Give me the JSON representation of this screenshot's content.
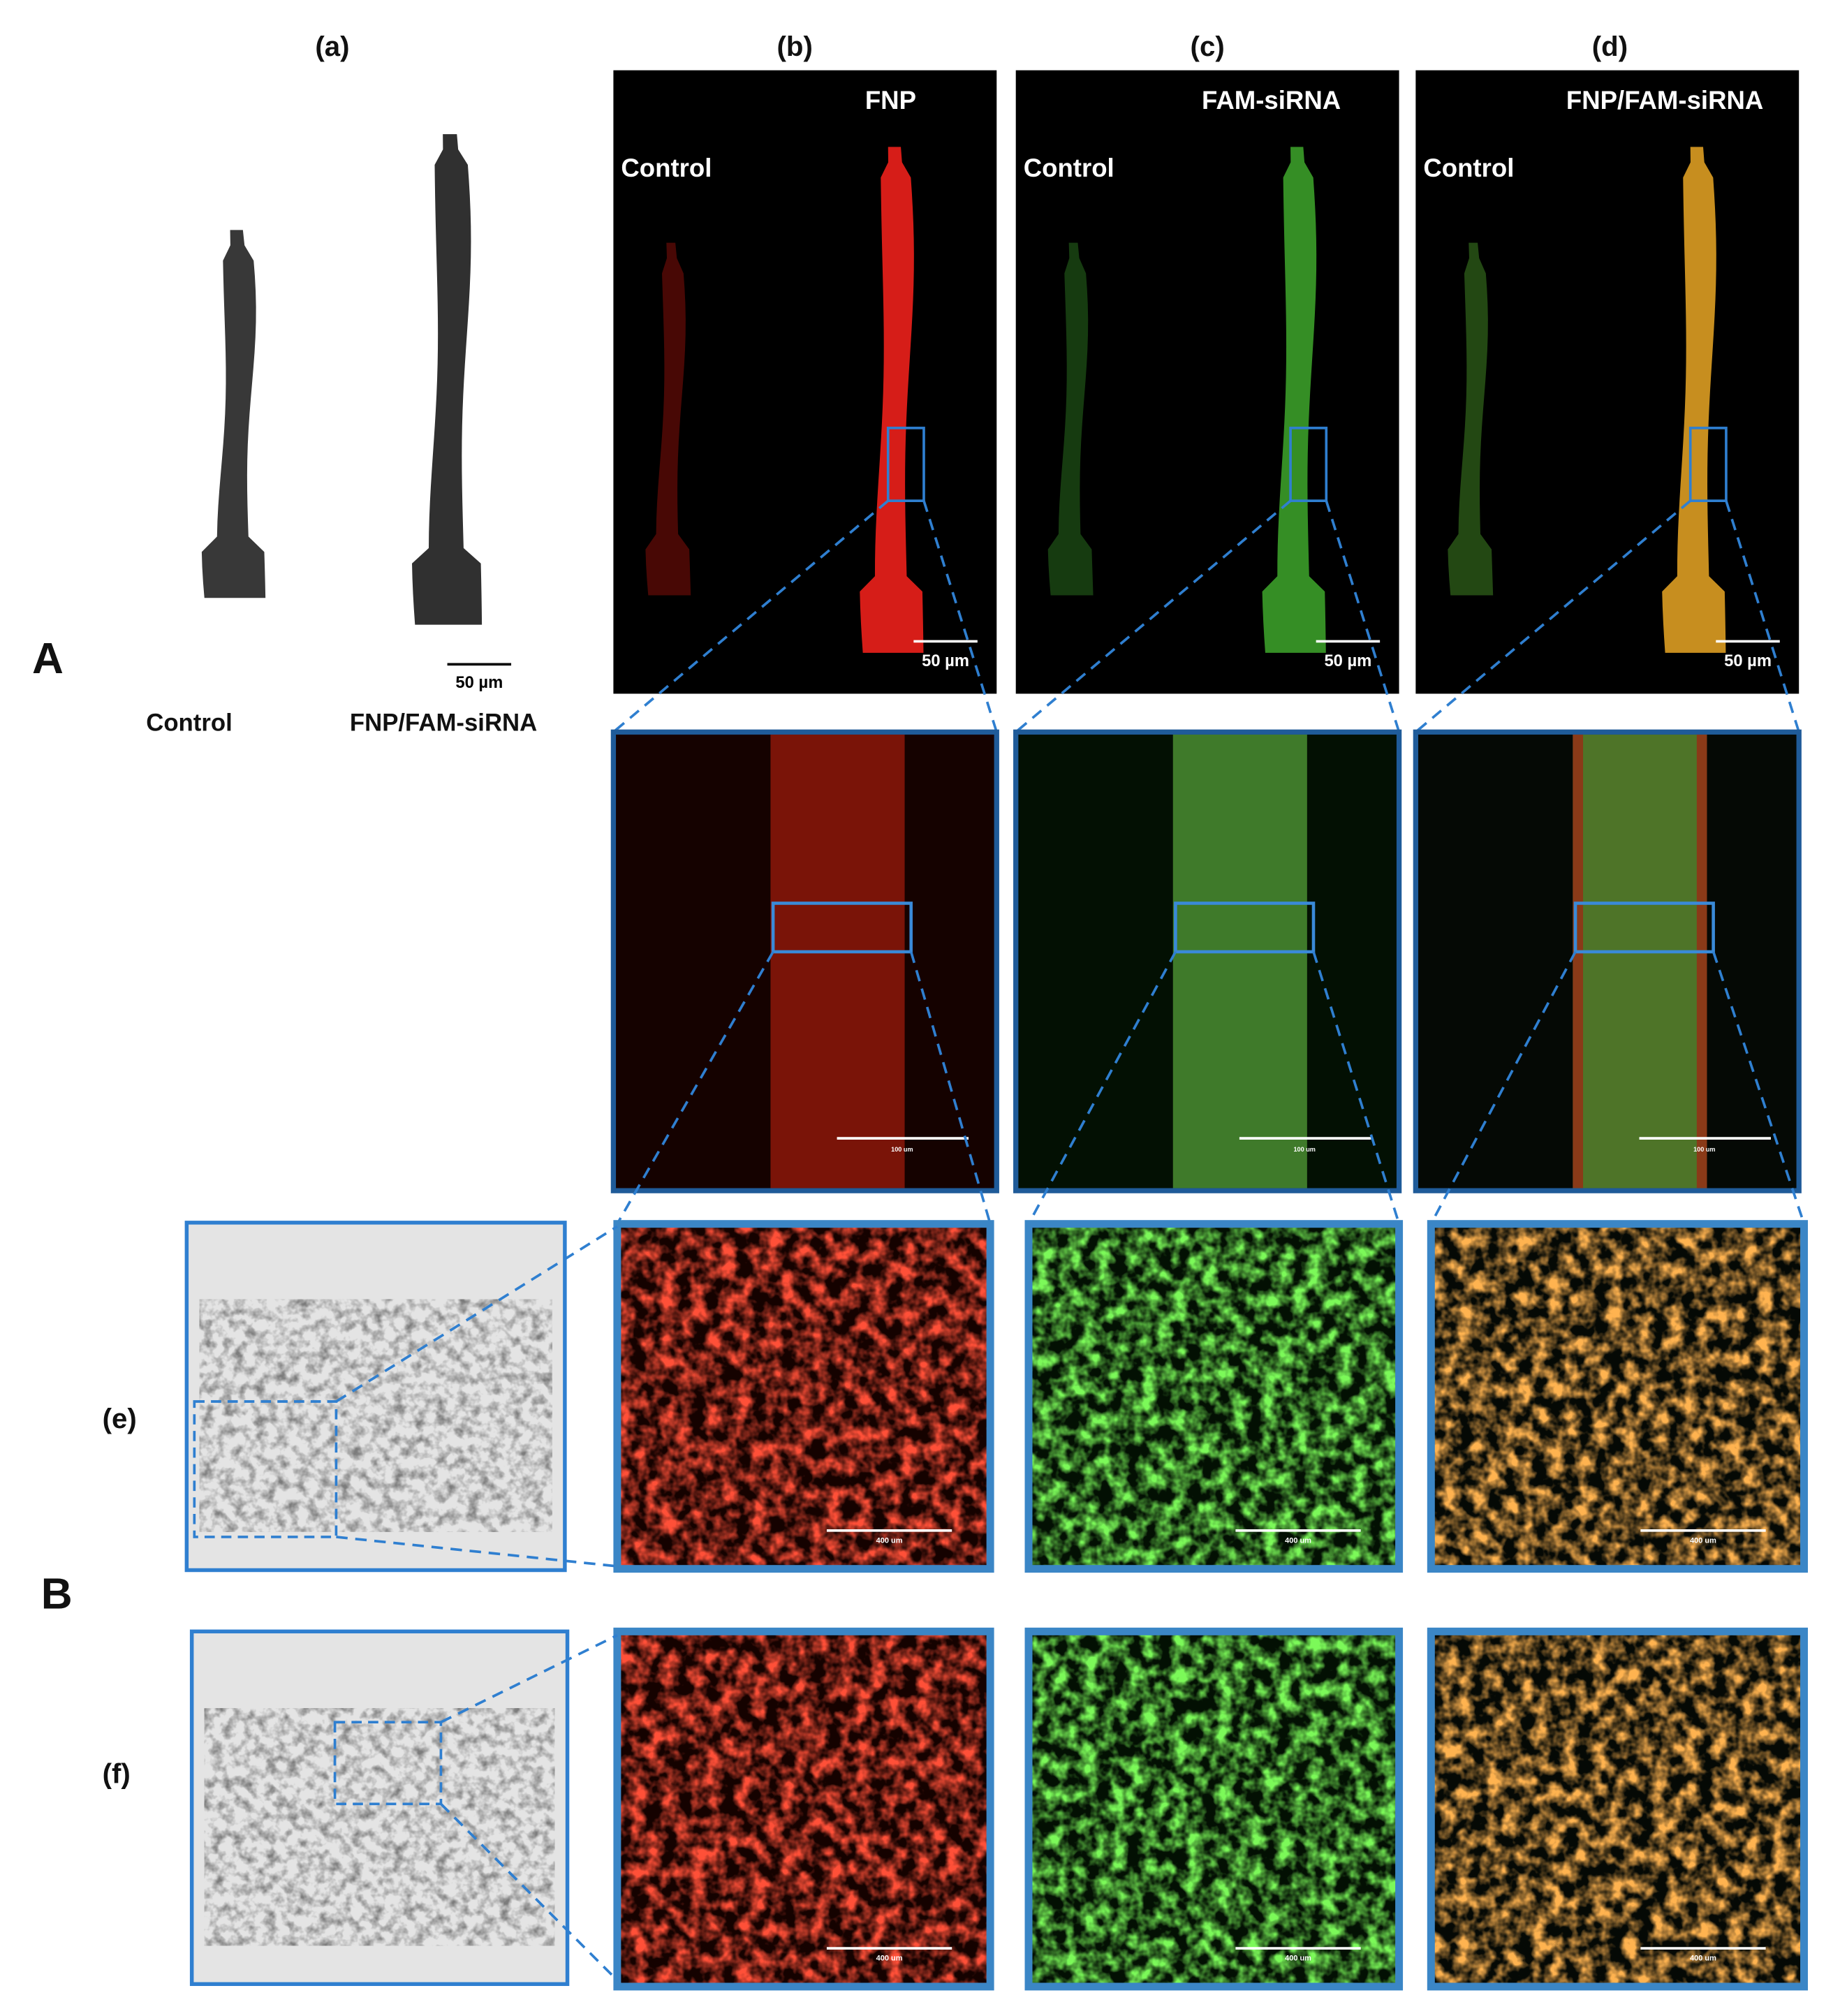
{
  "columns": [
    "(a)",
    "(b)",
    "(c)",
    "(d)"
  ],
  "sections": [
    "A",
    "B"
  ],
  "rows": [
    "(e)",
    "(f)"
  ],
  "panel_a": {
    "labels": [
      "Control",
      "FNP/FAM-siRNA"
    ],
    "scale_bar": "50 µm"
  },
  "panels": [
    {
      "title": "FNP",
      "control": "Control",
      "scale_bar": "50 µm",
      "zoom_scale": "100 um",
      "row_e_scale": "400 um",
      "row_f_scale": "400 um"
    },
    {
      "title": "FAM-siRNA",
      "control": "Control",
      "scale_bar": "50 µm",
      "zoom_scale": "100 um",
      "row_e_scale": "400 um",
      "row_f_scale": "400 um"
    },
    {
      "title": "FNP/FAM-siRNA",
      "control": "Control",
      "scale_bar": "50 µm",
      "zoom_scale": "100 um",
      "row_e_scale": "400 um",
      "row_f_scale": "400 um"
    }
  ]
}
